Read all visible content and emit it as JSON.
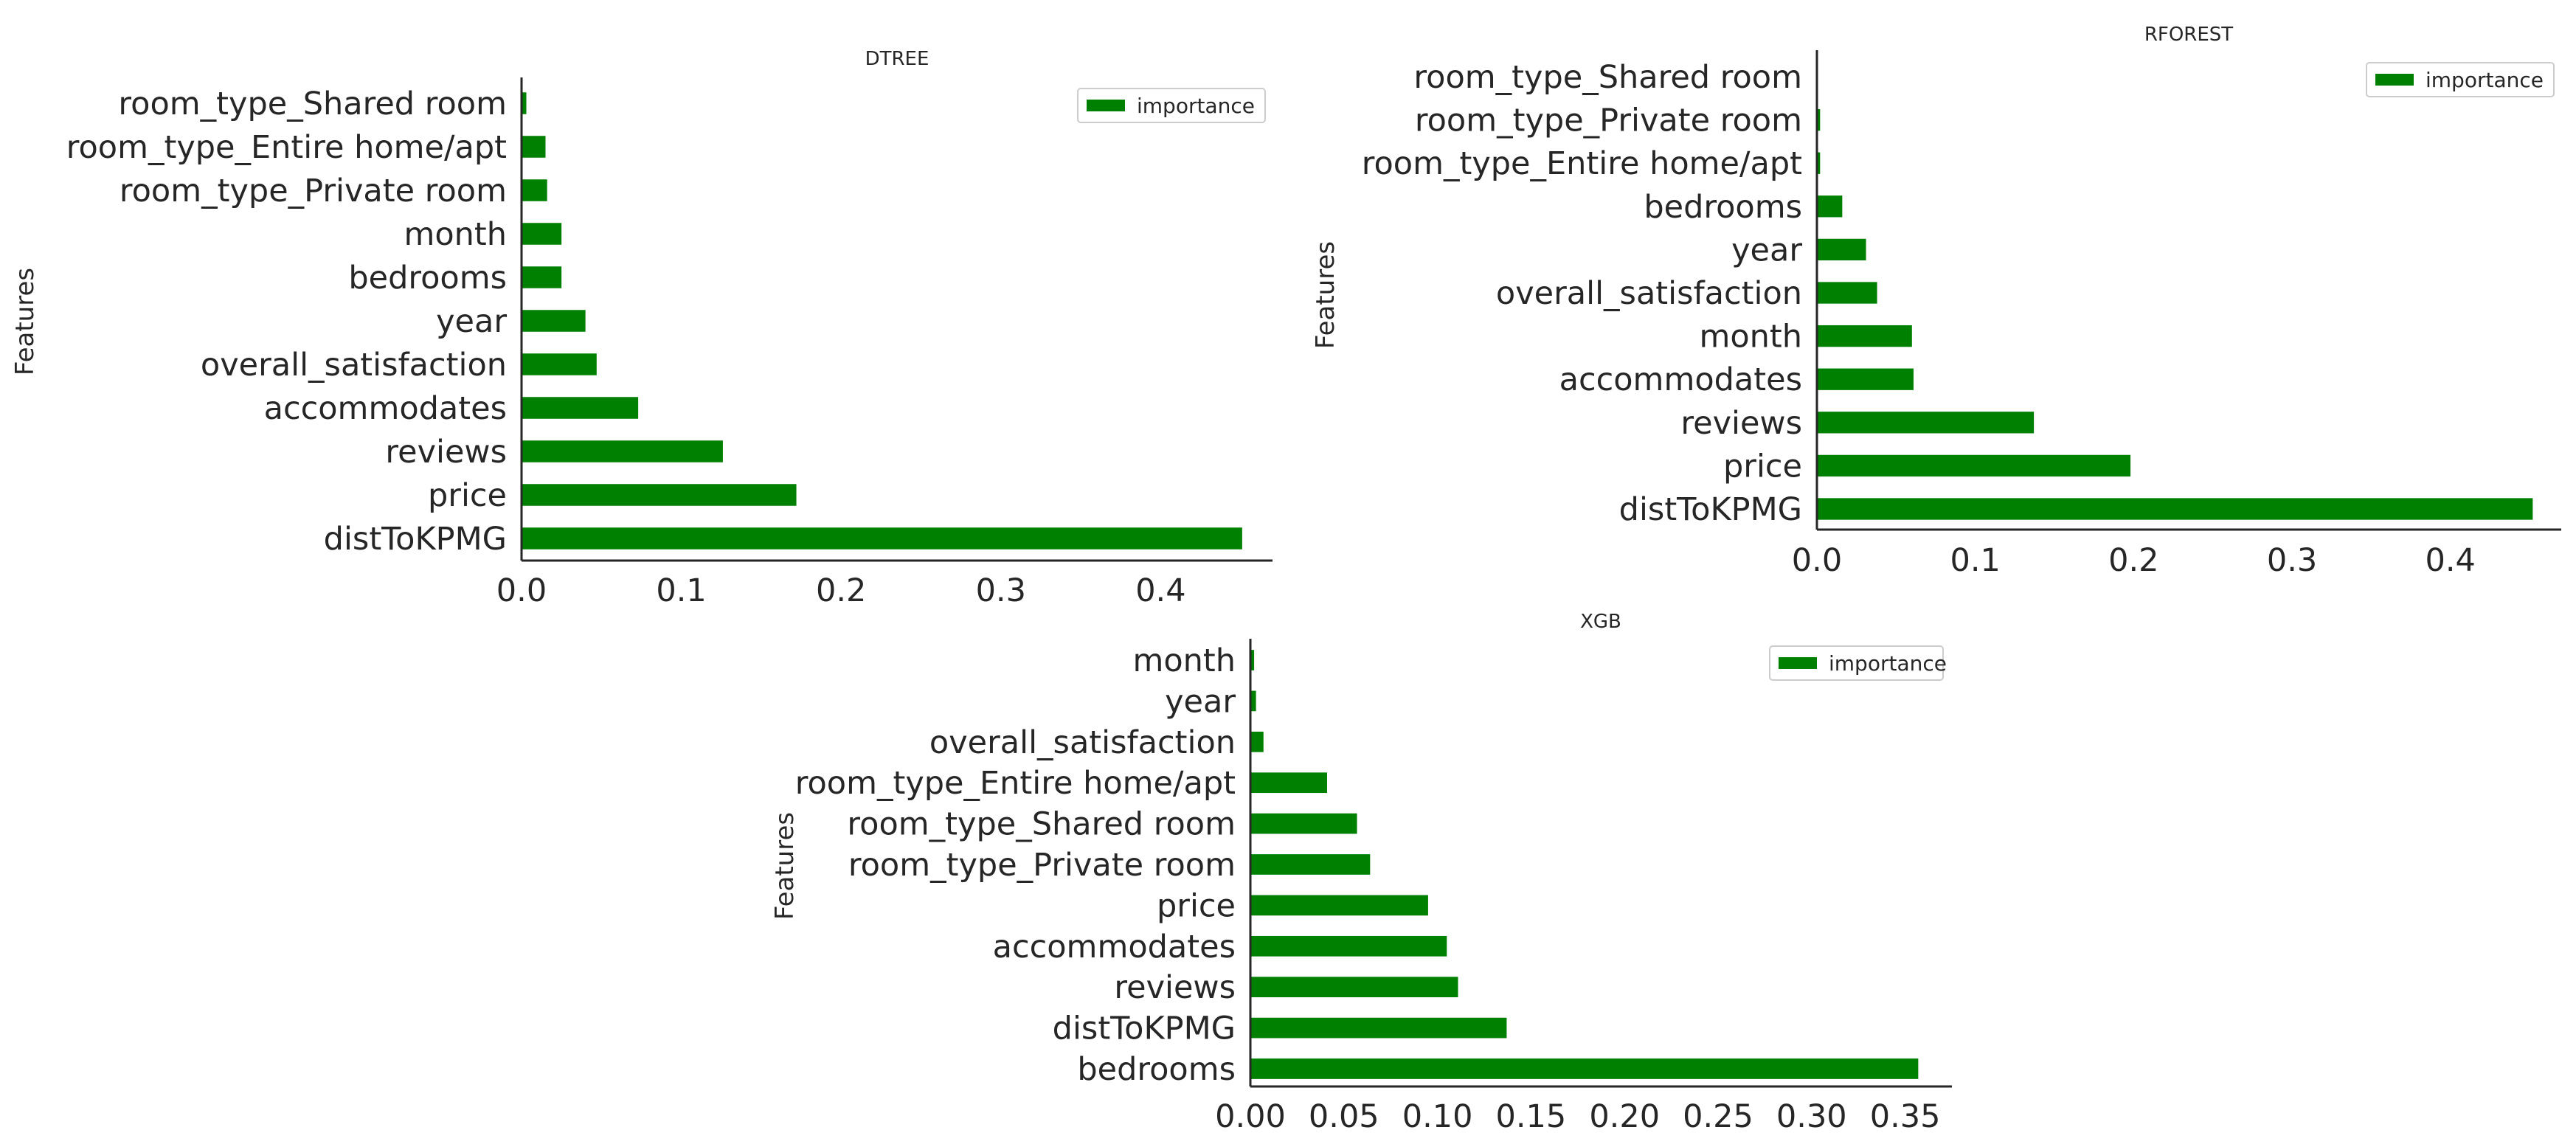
{
  "colors": {
    "bar": "#008000",
    "axis": "#262626",
    "text": "#262626"
  },
  "chart_data": [
    {
      "type": "bar",
      "orientation": "horizontal",
      "title": "DTREE",
      "xlabel": "",
      "ylabel": "Features",
      "legend": {
        "entries": [
          "importance"
        ],
        "placement": "upper right"
      },
      "xlim": [
        0,
        0.47
      ],
      "xticks": [
        "0.0",
        "0.1",
        "0.2",
        "0.3",
        "0.4"
      ],
      "grid": false,
      "categories": [
        "distToKPMG",
        "price",
        "reviews",
        "accommodates",
        "overall_satisfaction",
        "year",
        "bedrooms",
        "month",
        "room_type_Private room",
        "room_type_Entire home/apt",
        "room_type_Shared room"
      ],
      "series": [
        {
          "name": "importance",
          "values": [
            0.451,
            0.172,
            0.126,
            0.073,
            0.047,
            0.04,
            0.025,
            0.025,
            0.016,
            0.015,
            0.003
          ]
        }
      ]
    },
    {
      "type": "bar",
      "orientation": "horizontal",
      "title": "RFOREST",
      "xlabel": "",
      "ylabel": "Features",
      "legend": {
        "entries": [
          "importance"
        ],
        "placement": "upper right"
      },
      "xlim": [
        0,
        0.47
      ],
      "xticks": [
        "0.0",
        "0.1",
        "0.2",
        "0.3",
        "0.4"
      ],
      "grid": false,
      "categories": [
        "distToKPMG",
        "price",
        "reviews",
        "accommodates",
        "month",
        "overall_satisfaction",
        "year",
        "bedrooms",
        "room_type_Entire home/apt",
        "room_type_Private room",
        "room_type_Shared room"
      ],
      "series": [
        {
          "name": "importance",
          "values": [
            0.452,
            0.198,
            0.137,
            0.061,
            0.06,
            0.038,
            0.031,
            0.016,
            0.002,
            0.002,
            0.0005
          ]
        }
      ]
    },
    {
      "type": "bar",
      "orientation": "horizontal",
      "title": "XGB",
      "xlabel": "",
      "ylabel": "Features",
      "legend": {
        "entries": [
          "importance"
        ],
        "placement": "upper right"
      },
      "xlim": [
        0,
        0.375
      ],
      "xticks": [
        "0.00",
        "0.05",
        "0.10",
        "0.15",
        "0.20",
        "0.25",
        "0.30",
        "0.35"
      ],
      "grid": false,
      "categories": [
        "bedrooms",
        "distToKPMG",
        "reviews",
        "accommodates",
        "price",
        "room_type_Private room",
        "room_type_Shared room",
        "room_type_Entire home/apt",
        "overall_satisfaction",
        "year",
        "month"
      ],
      "series": [
        {
          "name": "importance",
          "values": [
            0.357,
            0.137,
            0.111,
            0.105,
            0.095,
            0.064,
            0.057,
            0.041,
            0.007,
            0.003,
            0.002
          ]
        }
      ]
    }
  ]
}
